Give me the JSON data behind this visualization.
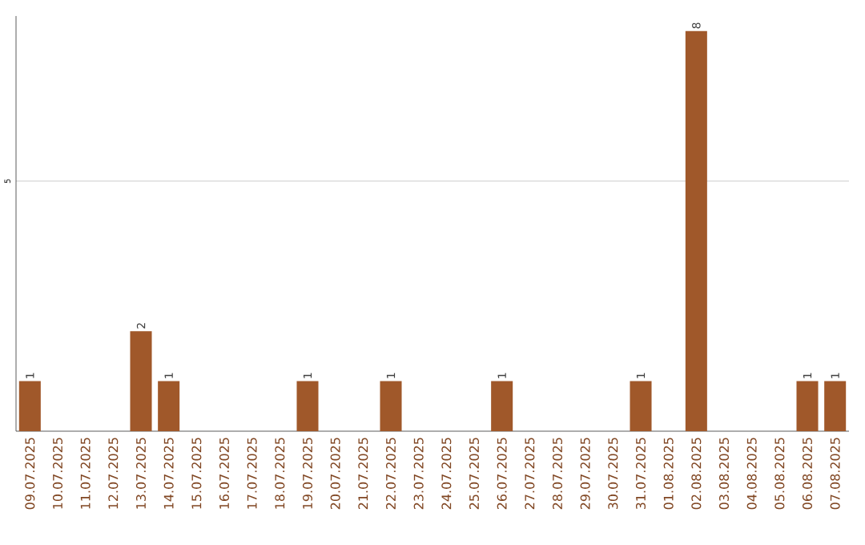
{
  "chart_data": {
    "type": "bar",
    "categories": [
      "09.07.2025",
      "10.07.2025",
      "11.07.2025",
      "12.07.2025",
      "13.07.2025",
      "14.07.2025",
      "15.07.2025",
      "16.07.2025",
      "17.07.2025",
      "18.07.2025",
      "19.07.2025",
      "20.07.2025",
      "21.07.2025",
      "22.07.2025",
      "23.07.2025",
      "24.07.2025",
      "25.07.2025",
      "26.07.2025",
      "27.07.2025",
      "28.07.2025",
      "29.07.2025",
      "30.07.2025",
      "31.07.2025",
      "01.08.2025",
      "02.08.2025",
      "03.08.2025",
      "04.08.2025",
      "05.08.2025",
      "06.08.2025",
      "07.08.2025"
    ],
    "values": [
      1,
      0,
      0,
      0,
      2,
      1,
      0,
      0,
      0,
      0,
      1,
      0,
      0,
      1,
      0,
      0,
      0,
      1,
      0,
      0,
      0,
      0,
      1,
      0,
      8,
      0,
      0,
      0,
      1,
      1
    ],
    "value_labels": [
      "1",
      null,
      null,
      null,
      "2",
      "1",
      null,
      null,
      null,
      null,
      "1",
      null,
      null,
      "1",
      null,
      null,
      null,
      "1",
      null,
      null,
      null,
      null,
      "1",
      null,
      "8",
      null,
      null,
      null,
      "1",
      "1"
    ],
    "color": "#a0582a",
    "ylim": [
      0,
      8.3
    ],
    "yticks": [
      5
    ],
    "grid": "y"
  }
}
